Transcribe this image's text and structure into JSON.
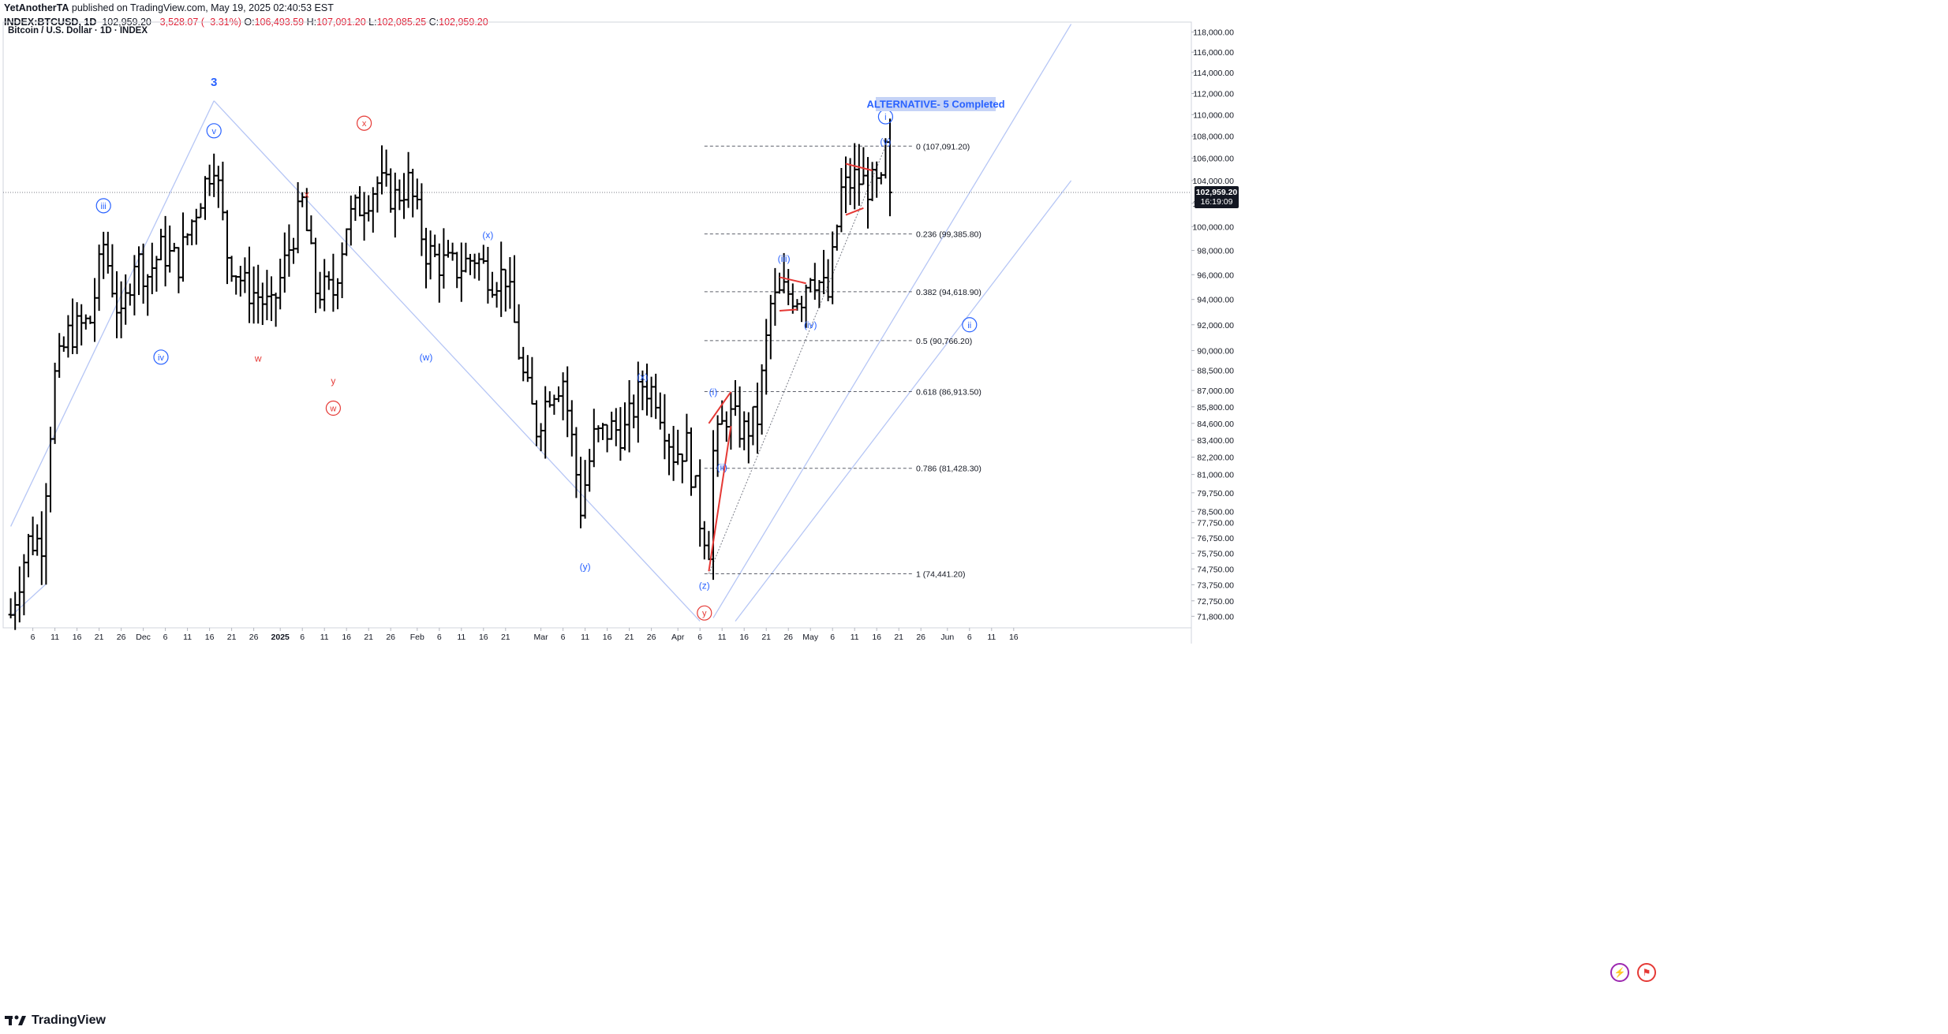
{
  "header": {
    "publisher": "YetAnotherTA",
    "published_text": "published on TradingView.com, May 19, 2025 02:40:53 EST",
    "symbol": "INDEX:BTCUSD, 1D",
    "last": "102,959.20",
    "change": "−3,528.07 (−3.31%)",
    "o_label": "O:",
    "o_value": "106,493.59",
    "h_label": "H:",
    "h_value": "107,091.20",
    "l_label": "L:",
    "l_value": "102,085.25",
    "c_label": "C:",
    "c_value": "102,959.20"
  },
  "chart_title": "Bitcoin / U.S. Dollar · 1D · INDEX",
  "footer": {
    "brand": "TradingView"
  },
  "colors": {
    "candle": "#000000",
    "wave_blue": "#2962ff",
    "wave_red": "#e53935",
    "channel": "#b6c6f5",
    "fib": "#5d606b",
    "annotation_bg": "#c5d3f7"
  },
  "chart_data": {
    "type": "ohlc",
    "title": "Bitcoin / U.S. Dollar · 1D · INDEX",
    "ylim": [
      71500,
      118800
    ],
    "y_axis": {
      "labels": [
        "118,000.00",
        "116,000.00",
        "114,000.00",
        "112,000.00",
        "110,000.00",
        "108,000.00",
        "106,000.00",
        "104,000.00",
        "102,000.00",
        "100,000.00",
        "98,000.00",
        "96,000.00",
        "94,000.00",
        "92,000.00",
        "90,000.00",
        "88,500.00",
        "87,000.00",
        "85,800.00",
        "84,600.00",
        "83,400.00",
        "82,200.00",
        "81,000.00",
        "79,750.00",
        "78,500.00",
        "77,750.00",
        "76,750.00",
        "75,750.00",
        "74,750.00",
        "73,750.00",
        "72,750.00",
        "71,800.00"
      ],
      "values": [
        118000,
        116000,
        114000,
        112000,
        110000,
        108000,
        106000,
        104000,
        102000,
        100000,
        98000,
        96000,
        94000,
        92000,
        90000,
        88500,
        87000,
        85800,
        84600,
        83400,
        82200,
        81000,
        79750,
        78500,
        77750,
        76750,
        75750,
        74750,
        73750,
        72750,
        71800
      ],
      "scale": "log"
    },
    "x_axis": {
      "labels": [
        "6",
        "11",
        "16",
        "21",
        "26",
        "Dec",
        "6",
        "11",
        "16",
        "21",
        "26",
        "2025",
        "6",
        "11",
        "16",
        "21",
        "26",
        "Feb",
        "6",
        "11",
        "16",
        "21",
        "Mar",
        "6",
        "11",
        "16",
        "21",
        "26",
        "Apr",
        "6",
        "11",
        "16",
        "21",
        "26",
        "May",
        "6",
        "11",
        "16",
        "21",
        "26",
        "Jun",
        "6",
        "11",
        "16"
      ],
      "bold": [
        "2025"
      ]
    },
    "last_price": {
      "value": 102959.2,
      "label": "102,959.20",
      "countdown": "16:19:09"
    },
    "fib_levels": [
      {
        "ratio": "0",
        "value": 107091.2,
        "label": "0 (107,091.20)"
      },
      {
        "ratio": "0.236",
        "value": 99385.8,
        "label": "0.236 (99,385.80)"
      },
      {
        "ratio": "0.382",
        "value": 94618.9,
        "label": "0.382 (94,618.90)"
      },
      {
        "ratio": "0.5",
        "value": 90766.2,
        "label": "0.5 (90,766.20)"
      },
      {
        "ratio": "0.618",
        "value": 86913.5,
        "label": "0.618 (86,913.50)"
      },
      {
        "ratio": "0.786",
        "value": 81428.3,
        "label": "0.786 (81,428.30)"
      },
      {
        "ratio": "1",
        "value": 74441.2,
        "label": "1 (74,441.20)"
      }
    ],
    "annotation": "ALTERNATIVE- 5 Completed",
    "wave_labels": [
      {
        "text": "3",
        "date": "2024-12-17",
        "price": 113000,
        "color": "blue",
        "style": "plain"
      },
      {
        "text": "v",
        "date": "2024-12-17",
        "price": 108500,
        "color": "blue",
        "style": "circle"
      },
      {
        "text": "iii",
        "date": "2024-11-22",
        "price": 101800,
        "color": "blue",
        "style": "circle"
      },
      {
        "text": "iv",
        "date": "2024-12-05",
        "price": 89500,
        "color": "blue",
        "style": "circle"
      },
      {
        "text": "x",
        "date": "2025-01-07",
        "price": 102800,
        "color": "red",
        "style": "plain"
      },
      {
        "text": "w",
        "date": "2024-12-27",
        "price": 89400,
        "color": "red",
        "style": "plain"
      },
      {
        "text": "y",
        "date": "2025-01-13",
        "price": 87700,
        "color": "red",
        "style": "plain"
      },
      {
        "text": "w",
        "date": "2025-01-13",
        "price": 85700,
        "color": "red",
        "style": "circle"
      },
      {
        "text": "x",
        "date": "2025-01-20",
        "price": 109200,
        "color": "red",
        "style": "circle"
      },
      {
        "text": "(w)",
        "date": "2025-02-03",
        "price": 89500,
        "color": "blue",
        "style": "plain"
      },
      {
        "text": "(x)",
        "date": "2025-02-17",
        "price": 99300,
        "color": "blue",
        "style": "plain"
      },
      {
        "text": "(y)",
        "date": "2025-03-11",
        "price": 74900,
        "color": "blue",
        "style": "plain"
      },
      {
        "text": "(x)",
        "date": "2025-03-24",
        "price": 88000,
        "color": "blue",
        "style": "plain"
      },
      {
        "text": "(z)",
        "date": "2025-04-07",
        "price": 73700,
        "color": "blue",
        "style": "plain"
      },
      {
        "text": "y",
        "date": "2025-04-07",
        "price": 72000,
        "color": "red",
        "style": "circle"
      },
      {
        "text": "(i)",
        "date": "2025-04-09",
        "price": 86900,
        "color": "blue",
        "style": "plain"
      },
      {
        "text": "(ii)",
        "date": "2025-04-11",
        "price": 81500,
        "color": "blue",
        "style": "plain"
      },
      {
        "text": "(iii)",
        "date": "2025-04-25",
        "price": 97300,
        "color": "blue",
        "style": "plain"
      },
      {
        "text": "(iv)",
        "date": "2025-05-01",
        "price": 92000,
        "color": "blue",
        "style": "plain"
      },
      {
        "text": "(v)",
        "date": "2025-05-18",
        "price": 107500,
        "color": "blue",
        "style": "plain"
      },
      {
        "text": "i",
        "date": "2025-05-18",
        "price": 109800,
        "color": "blue",
        "style": "circle"
      },
      {
        "text": "ii",
        "date": "2025-06-06",
        "price": 92000,
        "color": "blue",
        "style": "circle"
      }
    ],
    "ohlc_anchors": [
      {
        "date": "2024-11-01",
        "price": 71900
      },
      {
        "date": "2024-11-05",
        "price": 76500
      },
      {
        "date": "2024-11-08",
        "price": 76600
      },
      {
        "date": "2024-11-11",
        "price": 88000
      },
      {
        "date": "2024-11-14",
        "price": 91200
      },
      {
        "date": "2024-11-19",
        "price": 92300
      },
      {
        "date": "2024-11-22",
        "price": 98500
      },
      {
        "date": "2024-11-26",
        "price": 92000
      },
      {
        "date": "2024-11-29",
        "price": 97500
      },
      {
        "date": "2024-12-02",
        "price": 96000
      },
      {
        "date": "2024-12-05",
        "price": 98000
      },
      {
        "date": "2024-12-09",
        "price": 97000
      },
      {
        "date": "2024-12-12",
        "price": 100500
      },
      {
        "date": "2024-12-17",
        "price": 106000
      },
      {
        "date": "2024-12-20",
        "price": 97800
      },
      {
        "date": "2024-12-24",
        "price": 95000
      },
      {
        "date": "2024-12-27",
        "price": 94300
      },
      {
        "date": "2024-12-30",
        "price": 93000
      },
      {
        "date": "2025-01-03",
        "price": 98200
      },
      {
        "date": "2025-01-06",
        "price": 102000
      },
      {
        "date": "2025-01-09",
        "price": 94800
      },
      {
        "date": "2025-01-13",
        "price": 94600
      },
      {
        "date": "2025-01-16",
        "price": 100300
      },
      {
        "date": "2025-01-20",
        "price": 102300
      },
      {
        "date": "2025-01-23",
        "price": 103800
      },
      {
        "date": "2025-01-27",
        "price": 102500
      },
      {
        "date": "2025-01-30",
        "price": 103800
      },
      {
        "date": "2025-02-03",
        "price": 98000
      },
      {
        "date": "2025-02-06",
        "price": 97000
      },
      {
        "date": "2025-02-10",
        "price": 96500
      },
      {
        "date": "2025-02-14",
        "price": 97500
      },
      {
        "date": "2025-02-18",
        "price": 95800
      },
      {
        "date": "2025-02-21",
        "price": 96000
      },
      {
        "date": "2025-02-25",
        "price": 88000
      },
      {
        "date": "2025-02-28",
        "price": 84300
      },
      {
        "date": "2025-03-03",
        "price": 87000
      },
      {
        "date": "2025-03-06",
        "price": 87900
      },
      {
        "date": "2025-03-10",
        "price": 78800
      },
      {
        "date": "2025-03-13",
        "price": 83500
      },
      {
        "date": "2025-03-17",
        "price": 84200
      },
      {
        "date": "2025-03-20",
        "price": 84000
      },
      {
        "date": "2025-03-24",
        "price": 87500
      },
      {
        "date": "2025-03-27",
        "price": 86800
      },
      {
        "date": "2025-03-31",
        "price": 82500
      },
      {
        "date": "2025-04-03",
        "price": 83000
      },
      {
        "date": "2025-04-06",
        "price": 78000
      },
      {
        "date": "2025-04-08",
        "price": 76300
      },
      {
        "date": "2025-04-09",
        "price": 82500
      },
      {
        "date": "2025-04-12",
        "price": 85300
      },
      {
        "date": "2025-04-16",
        "price": 84000
      },
      {
        "date": "2025-04-19",
        "price": 85000
      },
      {
        "date": "2025-04-22",
        "price": 93500
      },
      {
        "date": "2025-04-25",
        "price": 94600
      },
      {
        "date": "2025-04-29",
        "price": 94300
      },
      {
        "date": "2025-05-01",
        "price": 96500
      },
      {
        "date": "2025-05-05",
        "price": 94200
      },
      {
        "date": "2025-05-08",
        "price": 103000
      },
      {
        "date": "2025-05-11",
        "price": 104200
      },
      {
        "date": "2025-05-14",
        "price": 103600
      },
      {
        "date": "2025-05-17",
        "price": 103200
      },
      {
        "date": "2025-05-18",
        "price": 106500
      },
      {
        "date": "2025-05-19",
        "price": 102959
      }
    ]
  }
}
